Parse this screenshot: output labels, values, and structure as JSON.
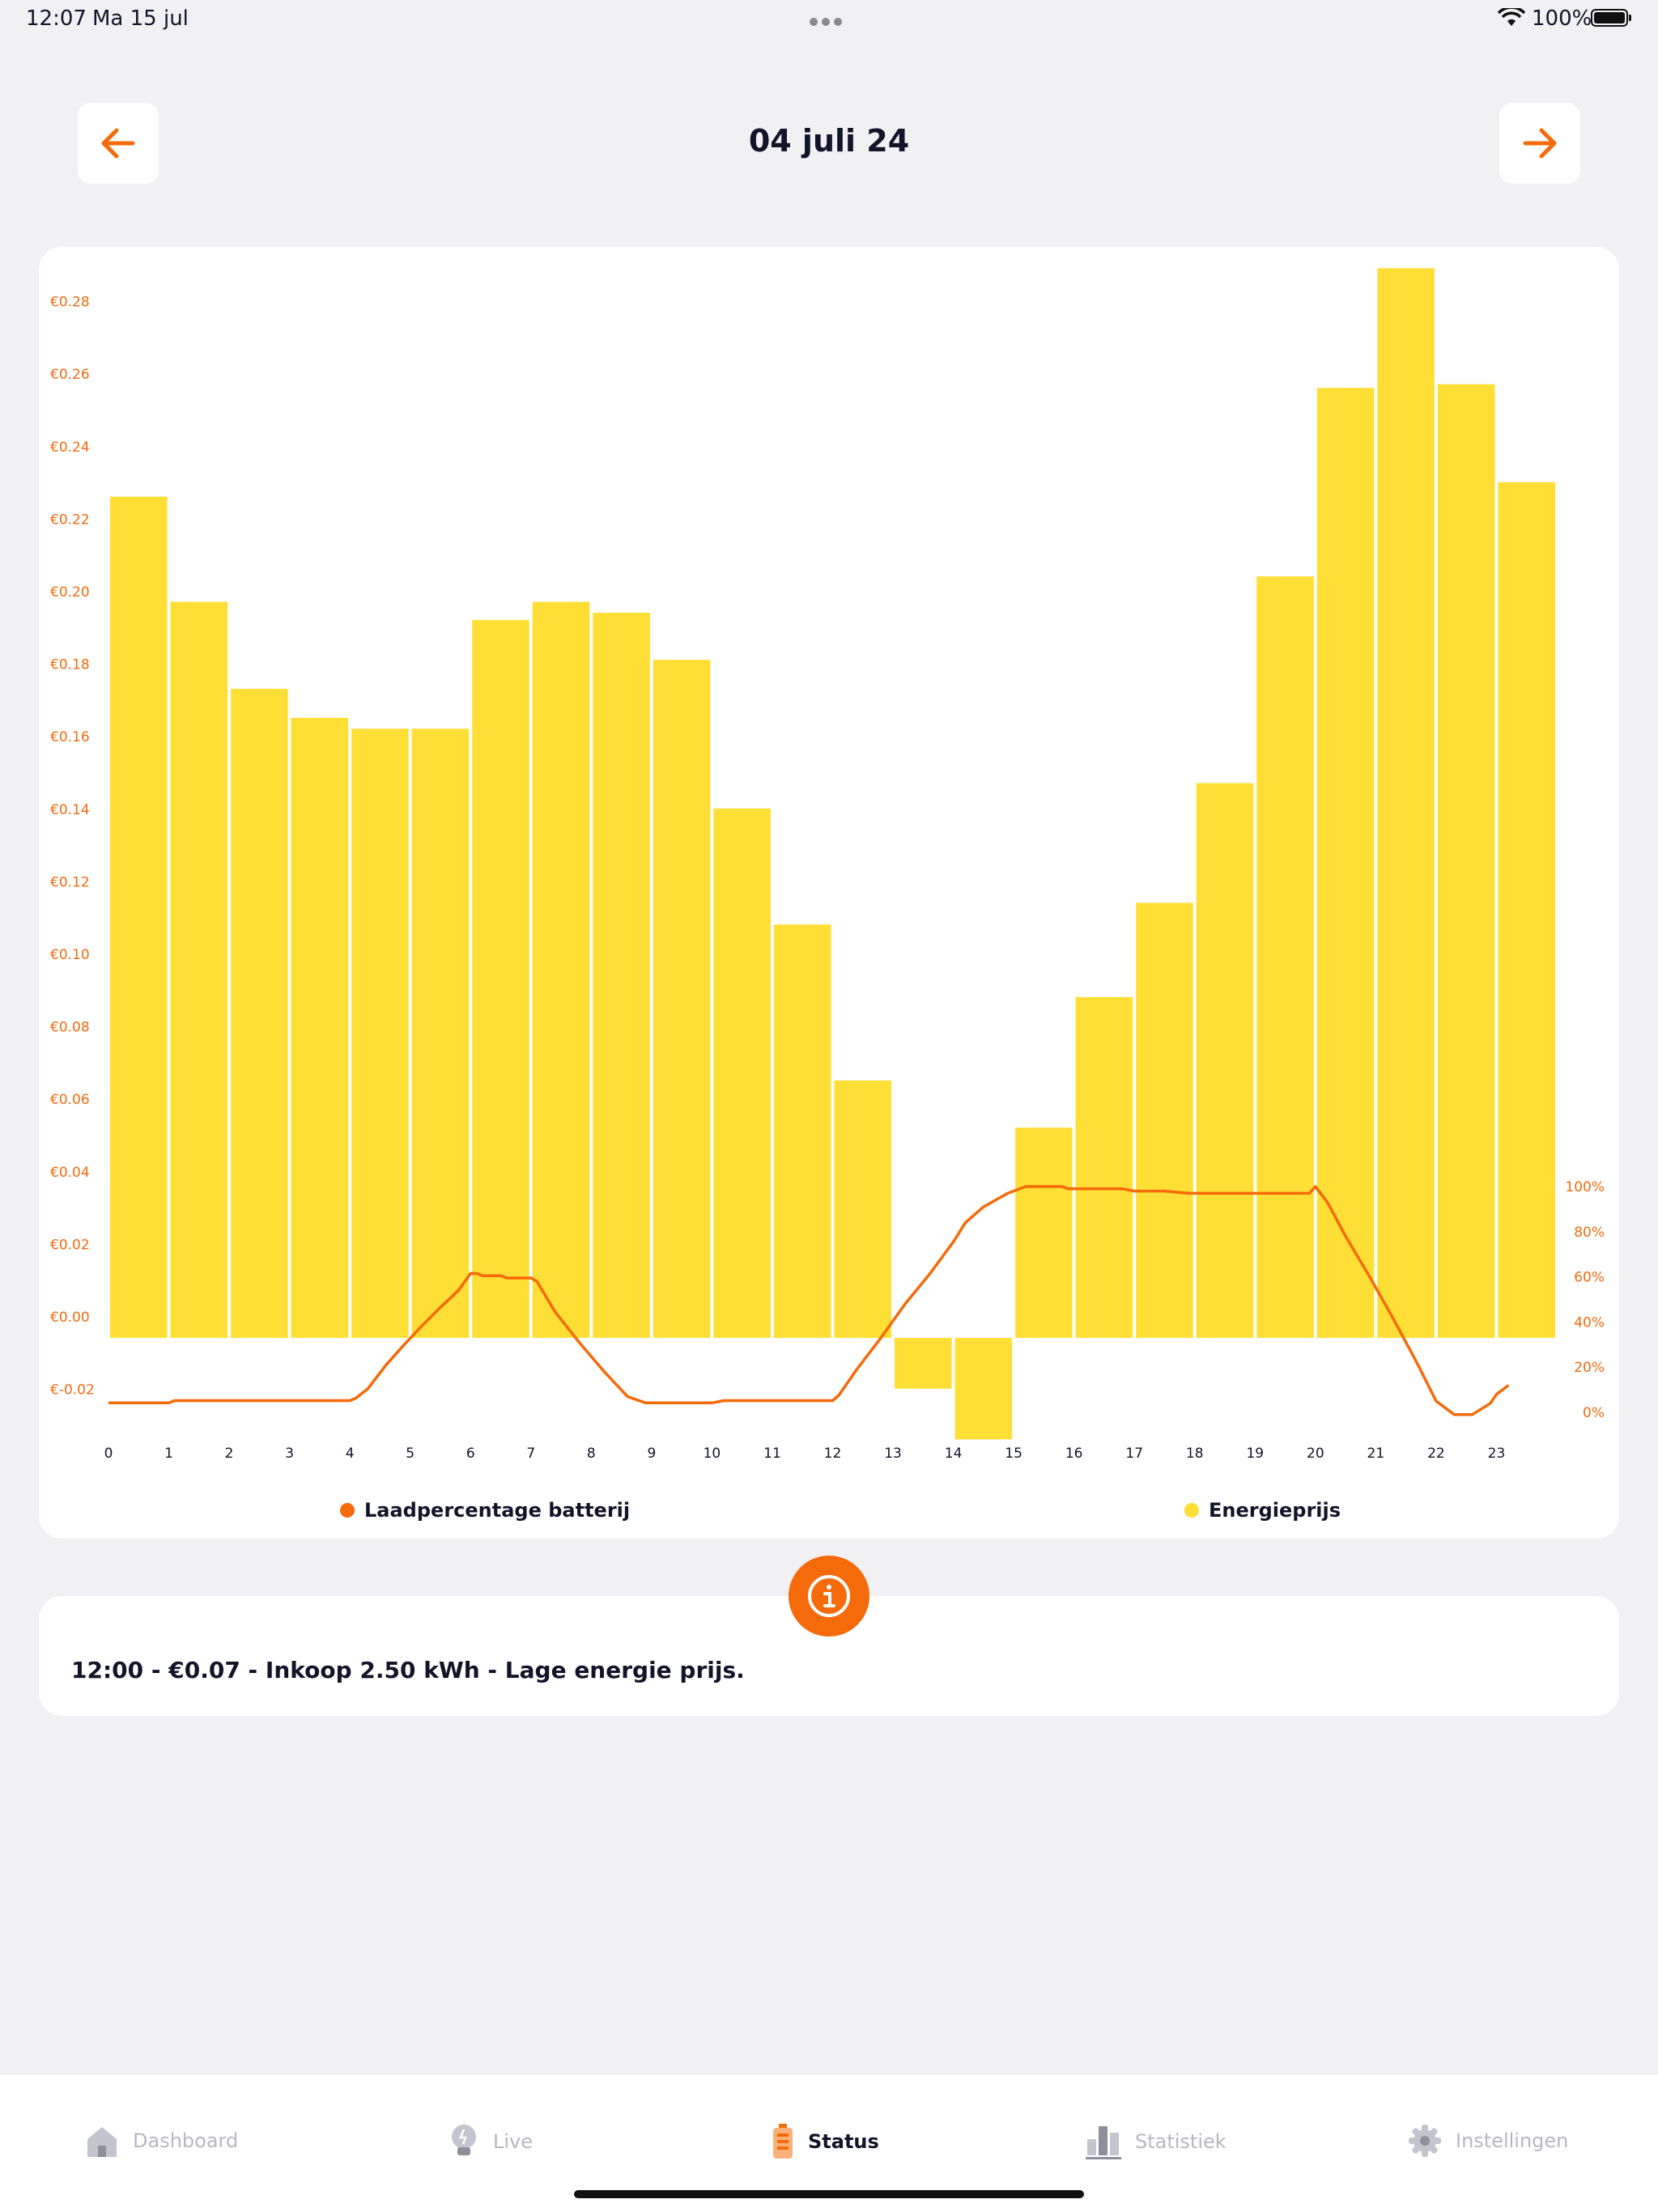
{
  "status_bar": {
    "time": "12:07",
    "date": "Ma 15 jul",
    "battery": "100%"
  },
  "header": {
    "title": "04 juli 24",
    "prev_icon": "arrow-left-icon",
    "next_icon": "arrow-right-icon"
  },
  "colors": {
    "accent": "#F56A0A",
    "bar": "#FFDF35",
    "line": "#F56A0A",
    "background": "#F1F1F3"
  },
  "chart_data": {
    "type": "bar",
    "x": [
      "0",
      "1",
      "2",
      "3",
      "4",
      "5",
      "6",
      "7",
      "8",
      "9",
      "10",
      "11",
      "12",
      "13",
      "14",
      "15",
      "16",
      "17",
      "18",
      "19",
      "20",
      "21",
      "22",
      "23"
    ],
    "series": [
      {
        "name": "Energieprijs",
        "axis": "left",
        "type": "bar",
        "values": [
          0.232,
          0.203,
          0.179,
          0.171,
          0.168,
          0.168,
          0.198,
          0.203,
          0.2,
          0.187,
          0.146,
          0.114,
          0.071,
          -0.014,
          -0.028,
          0.058,
          0.094,
          0.12,
          0.153,
          0.21,
          0.262,
          0.295,
          0.263,
          0.236
        ]
      },
      {
        "name": "Laadpercentage batterij",
        "axis": "right",
        "type": "line",
        "x": [
          0,
          1,
          1.1,
          2,
          3,
          4,
          4.1,
          4.3,
          4.6,
          4.9,
          5.2,
          5.5,
          5.8,
          6.0,
          6.1,
          6.2,
          6.5,
          6.6,
          7.0,
          7.1,
          7.4,
          7.8,
          8.2,
          8.6,
          8.9,
          9.0,
          9.1,
          9.5,
          10.0,
          10.2,
          11.0,
          12.0,
          12.1,
          12.4,
          12.8,
          13.2,
          13.6,
          14.0,
          14.2,
          14.5,
          14.9,
          15.2,
          15.5,
          15.8,
          15.9,
          16.0,
          16.2,
          16.8,
          17.0,
          17.5,
          17.9,
          18.0,
          19.0,
          19.9,
          20.0,
          20.2,
          20.5,
          20.9,
          21.3,
          21.7,
          22.0,
          22.3,
          22.6,
          22.9,
          23.0,
          23.2
        ],
        "values": [
          4.2,
          4.2,
          5.2,
          5.2,
          5.2,
          5.2,
          6.3,
          10.5,
          21,
          30,
          38.5,
          46.5,
          54,
          61.5,
          61.5,
          60.5,
          60.5,
          59.5,
          59.5,
          58,
          44.5,
          31,
          18.5,
          7,
          4.2,
          4.2,
          4.2,
          4.2,
          4.2,
          5.2,
          5.2,
          5.2,
          7.5,
          19,
          33,
          48,
          61,
          75.5,
          84,
          91,
          97,
          100,
          100,
          100,
          99,
          99,
          99,
          99,
          98,
          98,
          97,
          97,
          97,
          97,
          100,
          93,
          78,
          60,
          41,
          21,
          5,
          -1,
          -1,
          4,
          8,
          12
        ]
      }
    ],
    "y_left": {
      "ticks": [
        "€-0.02",
        "€0.00",
        "€0.02",
        "€0.04",
        "€0.06",
        "€0.08",
        "€0.10",
        "€0.12",
        "€0.14",
        "€0.16",
        "€0.18",
        "€0.20",
        "€0.22",
        "€0.24",
        "€0.26",
        "€0.28"
      ],
      "range": [
        -0.028,
        0.295
      ]
    },
    "y_right": {
      "ticks": [
        "0%",
        "20%",
        "40%",
        "60%",
        "80%",
        "100%"
      ],
      "range": [
        0,
        100
      ]
    },
    "legend": [
      {
        "label": "Laadpercentage batterij",
        "color": "#F56A0A"
      },
      {
        "label": "Energieprijs",
        "color": "#FFDF35"
      }
    ],
    "legend_position": "bottom"
  },
  "info": {
    "text": "12:00 - €0.07 - Inkoop 2.50 kWh - Lage energie prijs.",
    "icon": "info-icon"
  },
  "tabbar": {
    "items": [
      {
        "label": "Dashboard",
        "icon": "home-icon",
        "active": false
      },
      {
        "label": "Live",
        "icon": "bulb-icon",
        "active": false
      },
      {
        "label": "Status",
        "icon": "battery-icon",
        "active": true
      },
      {
        "label": "Statistiek",
        "icon": "bar-chart-icon",
        "active": false
      },
      {
        "label": "Instellingen",
        "icon": "gear-icon",
        "active": false
      }
    ]
  }
}
